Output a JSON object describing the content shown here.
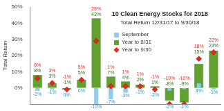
{
  "chart_data": {
    "type": "bar",
    "title": "10 Clean Energy Stocks for 2018",
    "subtitle": "Total Return 12/31/17 to 9/30/18",
    "y_label": "Total Return",
    "categories": [
      null,
      null,
      null,
      null,
      null,
      null,
      null,
      null,
      null,
      null,
      null,
      null,
      null
    ],
    "series": [
      {
        "name": "September",
        "type": "bar",
        "color": "#8fcdf0",
        "values": [
          -2,
          -1,
          0,
          0,
          -10,
          -7,
          -3,
          -1,
          -2,
          -2,
          -1,
          3,
          -1
        ],
        "value_labels": [
          "-2%",
          "-1%",
          "0%",
          "0%",
          "-10%",
          "-7%",
          "-3%",
          "-1%",
          "-2%",
          "-2%",
          "-1%",
          "3%",
          "-1%"
        ]
      },
      {
        "name": "Year to 8/31",
        "type": "bar",
        "color": "#62a12e",
        "values": [
          8,
          3,
          -1,
          5,
          43,
          7,
          4,
          2,
          1,
          -8,
          -9,
          15,
          23
        ],
        "value_labels": [
          "8%",
          "3%",
          "-1%",
          "5%",
          "43%",
          "7%",
          "4%",
          "2%",
          "1%",
          "-8%",
          "-9%",
          "15%",
          "23%"
        ]
      },
      {
        "name": "Year to 9/30",
        "type": "scatter",
        "marker": "diamond",
        "color": "#e8261f",
        "values": [
          6,
          3,
          -1,
          5,
          29,
          1,
          1,
          1,
          -1,
          -10,
          -10,
          18,
          22
        ],
        "value_labels": [
          "6%",
          "3%",
          "-1%",
          "5%",
          "29%",
          "1%",
          "1%",
          "1%",
          "-1%",
          "-10%",
          "-10%",
          "18%",
          "22%"
        ]
      }
    ],
    "ylim": [
      -10,
      50
    ],
    "yticks": [
      {
        "value": 0,
        "label": "0%"
      },
      {
        "value": 10,
        "label": "10%"
      },
      {
        "value": 20,
        "label": "20%"
      },
      {
        "value": 30,
        "label": "30%"
      },
      {
        "value": 40,
        "label": "40%"
      },
      {
        "value": 50,
        "label": "50%"
      }
    ],
    "grid": false,
    "legend": "center",
    "data_labels": true,
    "tick_labels": "y"
  }
}
